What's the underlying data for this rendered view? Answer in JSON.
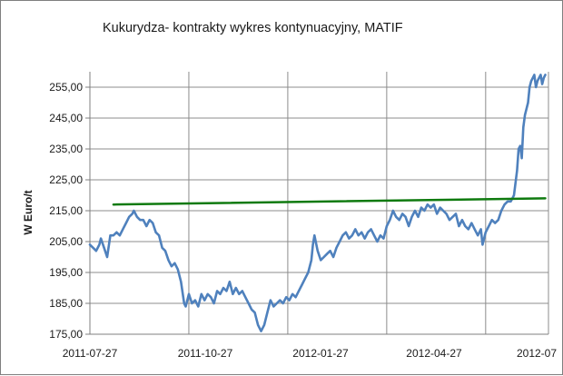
{
  "chart_data": {
    "type": "line",
    "title": "Kukurydza- kontrakty wykres kontynuacyjny, MATIF",
    "xlabel": "",
    "ylabel": "W Euro/t",
    "ylim": [
      175,
      260
    ],
    "yticks": [
      "175,00",
      "185,00",
      "195,00",
      "205,00",
      "215,00",
      "225,00",
      "235,00",
      "245,00",
      "255,00"
    ],
    "ytick_values": [
      175,
      185,
      195,
      205,
      215,
      225,
      235,
      245,
      255
    ],
    "xticks": [
      "2011-07-27",
      "2011-10-27",
      "2012-01-27",
      "2012-04-27",
      "2012-07"
    ],
    "grid": true,
    "legend": "none",
    "colors": {
      "price": "#4f81bd",
      "trend": "#0f7a0f",
      "grid": "#8c8c8c",
      "axis": "#7f7f7f"
    },
    "series": [
      {
        "key": "price",
        "values": [
          [
            0,
            204
          ],
          [
            2,
            203
          ],
          [
            4,
            202
          ],
          [
            6,
            204
          ],
          [
            7,
            206
          ],
          [
            9,
            203
          ],
          [
            11,
            200
          ],
          [
            13,
            207
          ],
          [
            15,
            207
          ],
          [
            17,
            208
          ],
          [
            19,
            207
          ],
          [
            21,
            209
          ],
          [
            23,
            211
          ],
          [
            25,
            213
          ],
          [
            27,
            214
          ],
          [
            28,
            215
          ],
          [
            30,
            213
          ],
          [
            32,
            212
          ],
          [
            34,
            212
          ],
          [
            36,
            210
          ],
          [
            38,
            212
          ],
          [
            40,
            211
          ],
          [
            42,
            208
          ],
          [
            44,
            207
          ],
          [
            46,
            203
          ],
          [
            48,
            202
          ],
          [
            50,
            199
          ],
          [
            52,
            197
          ],
          [
            54,
            198
          ],
          [
            56,
            196
          ],
          [
            58,
            192
          ],
          [
            60,
            185
          ],
          [
            61,
            184
          ],
          [
            63,
            188
          ],
          [
            65,
            185
          ],
          [
            67,
            186
          ],
          [
            69,
            184
          ],
          [
            71,
            188
          ],
          [
            73,
            186
          ],
          [
            75,
            188
          ],
          [
            77,
            187
          ],
          [
            79,
            185
          ],
          [
            81,
            189
          ],
          [
            83,
            188
          ],
          [
            85,
            190
          ],
          [
            87,
            189
          ],
          [
            89,
            192
          ],
          [
            91,
            188
          ],
          [
            93,
            190
          ],
          [
            95,
            188
          ],
          [
            97,
            189
          ],
          [
            99,
            187
          ],
          [
            101,
            185
          ],
          [
            103,
            183
          ],
          [
            105,
            182
          ],
          [
            107,
            178
          ],
          [
            109,
            176
          ],
          [
            111,
            178
          ],
          [
            113,
            182
          ],
          [
            115,
            186
          ],
          [
            117,
            184
          ],
          [
            119,
            185
          ],
          [
            121,
            186
          ],
          [
            123,
            185
          ],
          [
            125,
            187
          ],
          [
            127,
            186
          ],
          [
            129,
            188
          ],
          [
            131,
            187
          ],
          [
            133,
            189
          ],
          [
            135,
            191
          ],
          [
            137,
            193
          ],
          [
            139,
            195
          ],
          [
            141,
            199
          ],
          [
            142,
            204
          ],
          [
            143,
            207
          ],
          [
            145,
            202
          ],
          [
            147,
            199
          ],
          [
            149,
            200
          ],
          [
            151,
            201
          ],
          [
            153,
            202
          ],
          [
            155,
            200
          ],
          [
            157,
            203
          ],
          [
            159,
            205
          ],
          [
            161,
            207
          ],
          [
            163,
            208
          ],
          [
            165,
            206
          ],
          [
            167,
            207
          ],
          [
            169,
            209
          ],
          [
            171,
            207
          ],
          [
            173,
            208
          ],
          [
            175,
            206
          ],
          [
            177,
            208
          ],
          [
            179,
            209
          ],
          [
            181,
            207
          ],
          [
            183,
            205
          ],
          [
            185,
            207
          ],
          [
            187,
            206
          ],
          [
            189,
            210
          ],
          [
            191,
            212
          ],
          [
            193,
            215
          ],
          [
            195,
            213
          ],
          [
            197,
            212
          ],
          [
            199,
            214
          ],
          [
            201,
            213
          ],
          [
            203,
            210
          ],
          [
            205,
            213
          ],
          [
            207,
            215
          ],
          [
            209,
            213
          ],
          [
            211,
            216
          ],
          [
            213,
            215
          ],
          [
            215,
            217
          ],
          [
            217,
            216
          ],
          [
            219,
            217
          ],
          [
            221,
            214
          ],
          [
            223,
            216
          ],
          [
            225,
            215
          ],
          [
            227,
            214
          ],
          [
            229,
            212
          ],
          [
            231,
            213
          ],
          [
            233,
            214
          ],
          [
            235,
            210
          ],
          [
            237,
            212
          ],
          [
            239,
            210
          ],
          [
            241,
            209
          ],
          [
            243,
            211
          ],
          [
            245,
            209
          ],
          [
            247,
            207
          ],
          [
            249,
            209
          ],
          [
            250,
            204
          ],
          [
            252,
            208
          ],
          [
            254,
            210
          ],
          [
            256,
            212
          ],
          [
            258,
            211
          ],
          [
            260,
            212
          ],
          [
            262,
            215
          ],
          [
            264,
            217
          ],
          [
            266,
            218
          ],
          [
            268,
            218
          ],
          [
            270,
            220
          ],
          [
            272,
            228
          ],
          [
            273,
            235
          ],
          [
            274,
            236
          ],
          [
            275,
            232
          ],
          [
            276,
            242
          ],
          [
            277,
            246
          ],
          [
            278,
            248
          ],
          [
            279,
            250
          ],
          [
            280,
            255
          ],
          [
            281,
            257
          ],
          [
            282,
            258
          ],
          [
            283,
            259
          ],
          [
            284,
            255
          ],
          [
            285,
            257
          ],
          [
            286,
            258
          ],
          [
            287,
            259
          ],
          [
            288,
            256
          ],
          [
            289,
            258
          ],
          [
            290,
            259
          ]
        ]
      },
      {
        "key": "trend",
        "values": [
          [
            15,
            217
          ],
          [
            290,
            219
          ]
        ]
      }
    ]
  }
}
